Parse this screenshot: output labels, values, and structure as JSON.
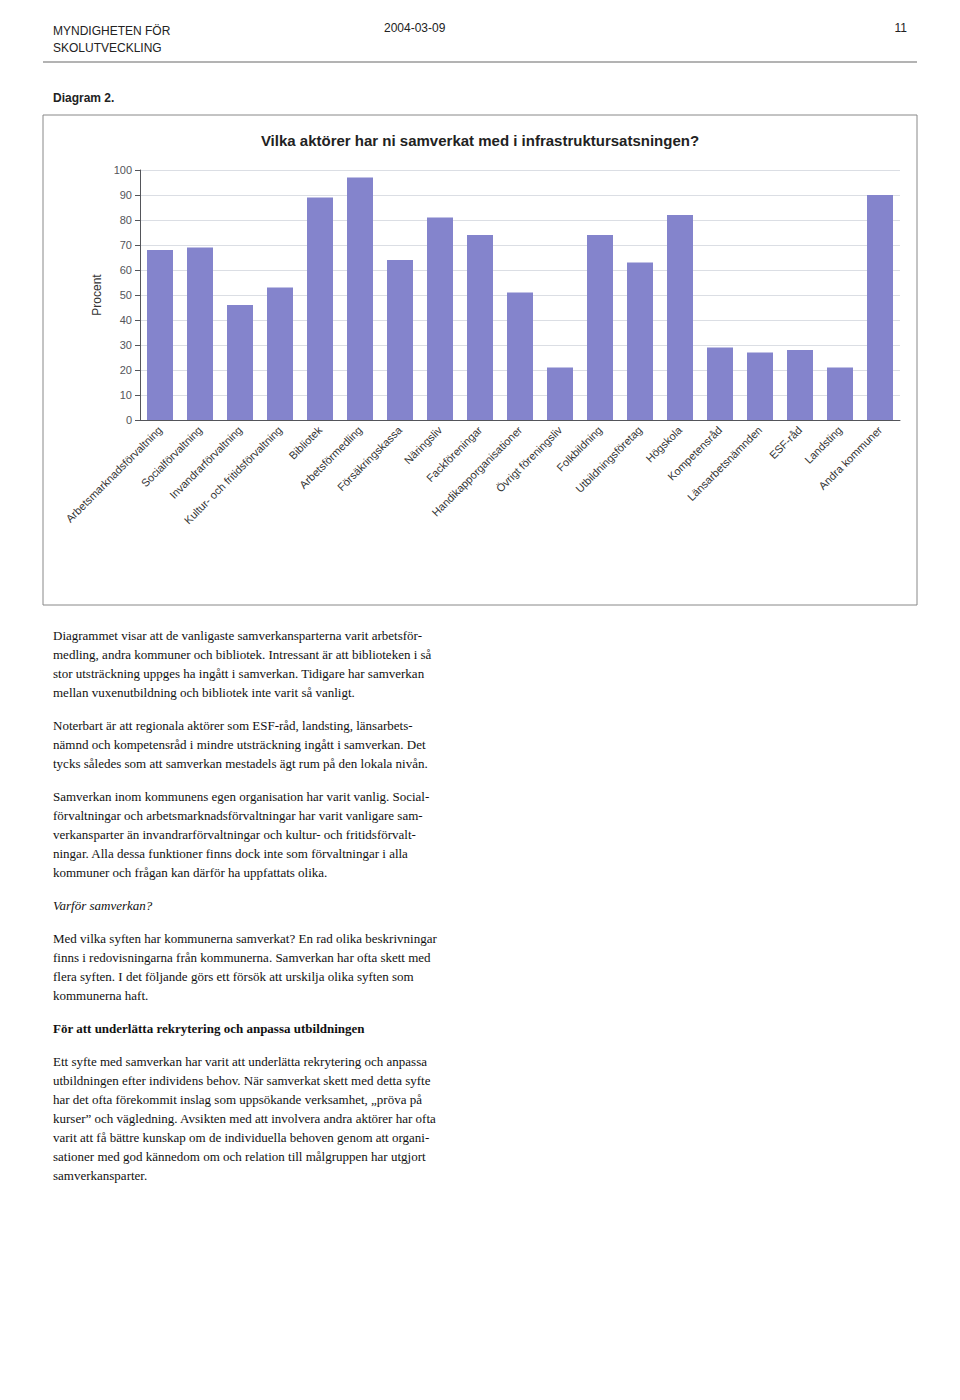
{
  "chart_data": {
    "type": "bar",
    "title": "Vilka aktörer har ni samverkat med i infrastruktursatsningen?",
    "ylabel": "Procent",
    "categories": [
      "Arbetsmarknadsförvaltning",
      "Socialförvaltning",
      "Invandrarförvaltning",
      "Kultur- och fritidsförvaltning",
      "Bibliotek",
      "Arbetsförmedling",
      "Försäkringskassa",
      "Näringsliv",
      "Fackföreningar",
      "Handikapporganisationer",
      "Övrigt föreningsliv",
      "Folkbildning",
      "Utbildningsföretag",
      "Högskola",
      "Kompetensråd",
      "Länsarbetsnämnden",
      "ESF-råd",
      "Landsting",
      "Andra kommuner"
    ],
    "values": [
      68,
      69,
      46,
      53,
      89,
      97,
      64,
      81,
      74,
      51,
      21,
      74,
      63,
      82,
      29,
      27,
      28,
      21,
      90
    ],
    "color": "#8484cc",
    "ylim": [
      0,
      100
    ],
    "yticks": [
      0,
      10,
      20,
      30,
      40,
      50,
      60,
      70,
      80,
      90,
      100
    ],
    "grid": true,
    "annotations": [
      "MYNDIGHETEN FÖR\nSKOLUTVECKLING",
      "2004-03-09",
      "11",
      "Diagram 2.",
      "Diagrammet visar att de vanligaste samverkansparterna varit arbetsför-\nmedling, andra kommuner och bibliotek. Intressant är att biblioteken i så\nstor utsträckning uppges ha ingått i samverkan. Tidigare har samverkan\nmellan vuxenutbildning och bibliotek inte varit så vanligt.",
      "Noterbart är att regionala aktörer som ESF-råd, landsting, länsarbets-\nnämnd och kompetensråd i mindre utsträckning ingått i samverkan. Det\ntycks således som att samverkan mestadels ägt rum på den lokala nivån.",
      "Samverkan inom kommunens egen organisation har varit vanlig. Social-\nförvaltningar och arbetsmarknadsförvaltningar har varit vanligare sam-\nverkansparter än invandrarförvaltningar och kultur- och fritidsförvalt-\nningar. Alla dessa funktioner finns dock inte som förvaltningar i alla\nkommuner och frågan kan därför ha uppfattats olika.",
      "Varför samverkan?",
      "Med vilka syften har kommunerna samverkat? En rad olika beskrivningar\nfinns i redovisningarna från kommunerna. Samverkan har ofta skett med\nflera syften. I det följande görs ett försök att urskilja olika syften som\nkommunerna haft.",
      "För att underlätta rekrytering och anpassa utbildningen",
      "Ett syfte med samverkan har varit att underlätta rekrytering och anpassa\nutbildningen efter individens behov. När samverkat skett med detta syfte\nhar det ofta förekommit inslag som uppsökande verksamhet, „pröva på\nkurser” och vägledning. Avsikten med att involvera andra aktörer har ofta\nvarit att få bättre kunskap om de individuella behoven genom att organi-\nsationer med god kännedom om och relation till målgruppen har utgjort\nsamverkansparter."
    ]
  }
}
